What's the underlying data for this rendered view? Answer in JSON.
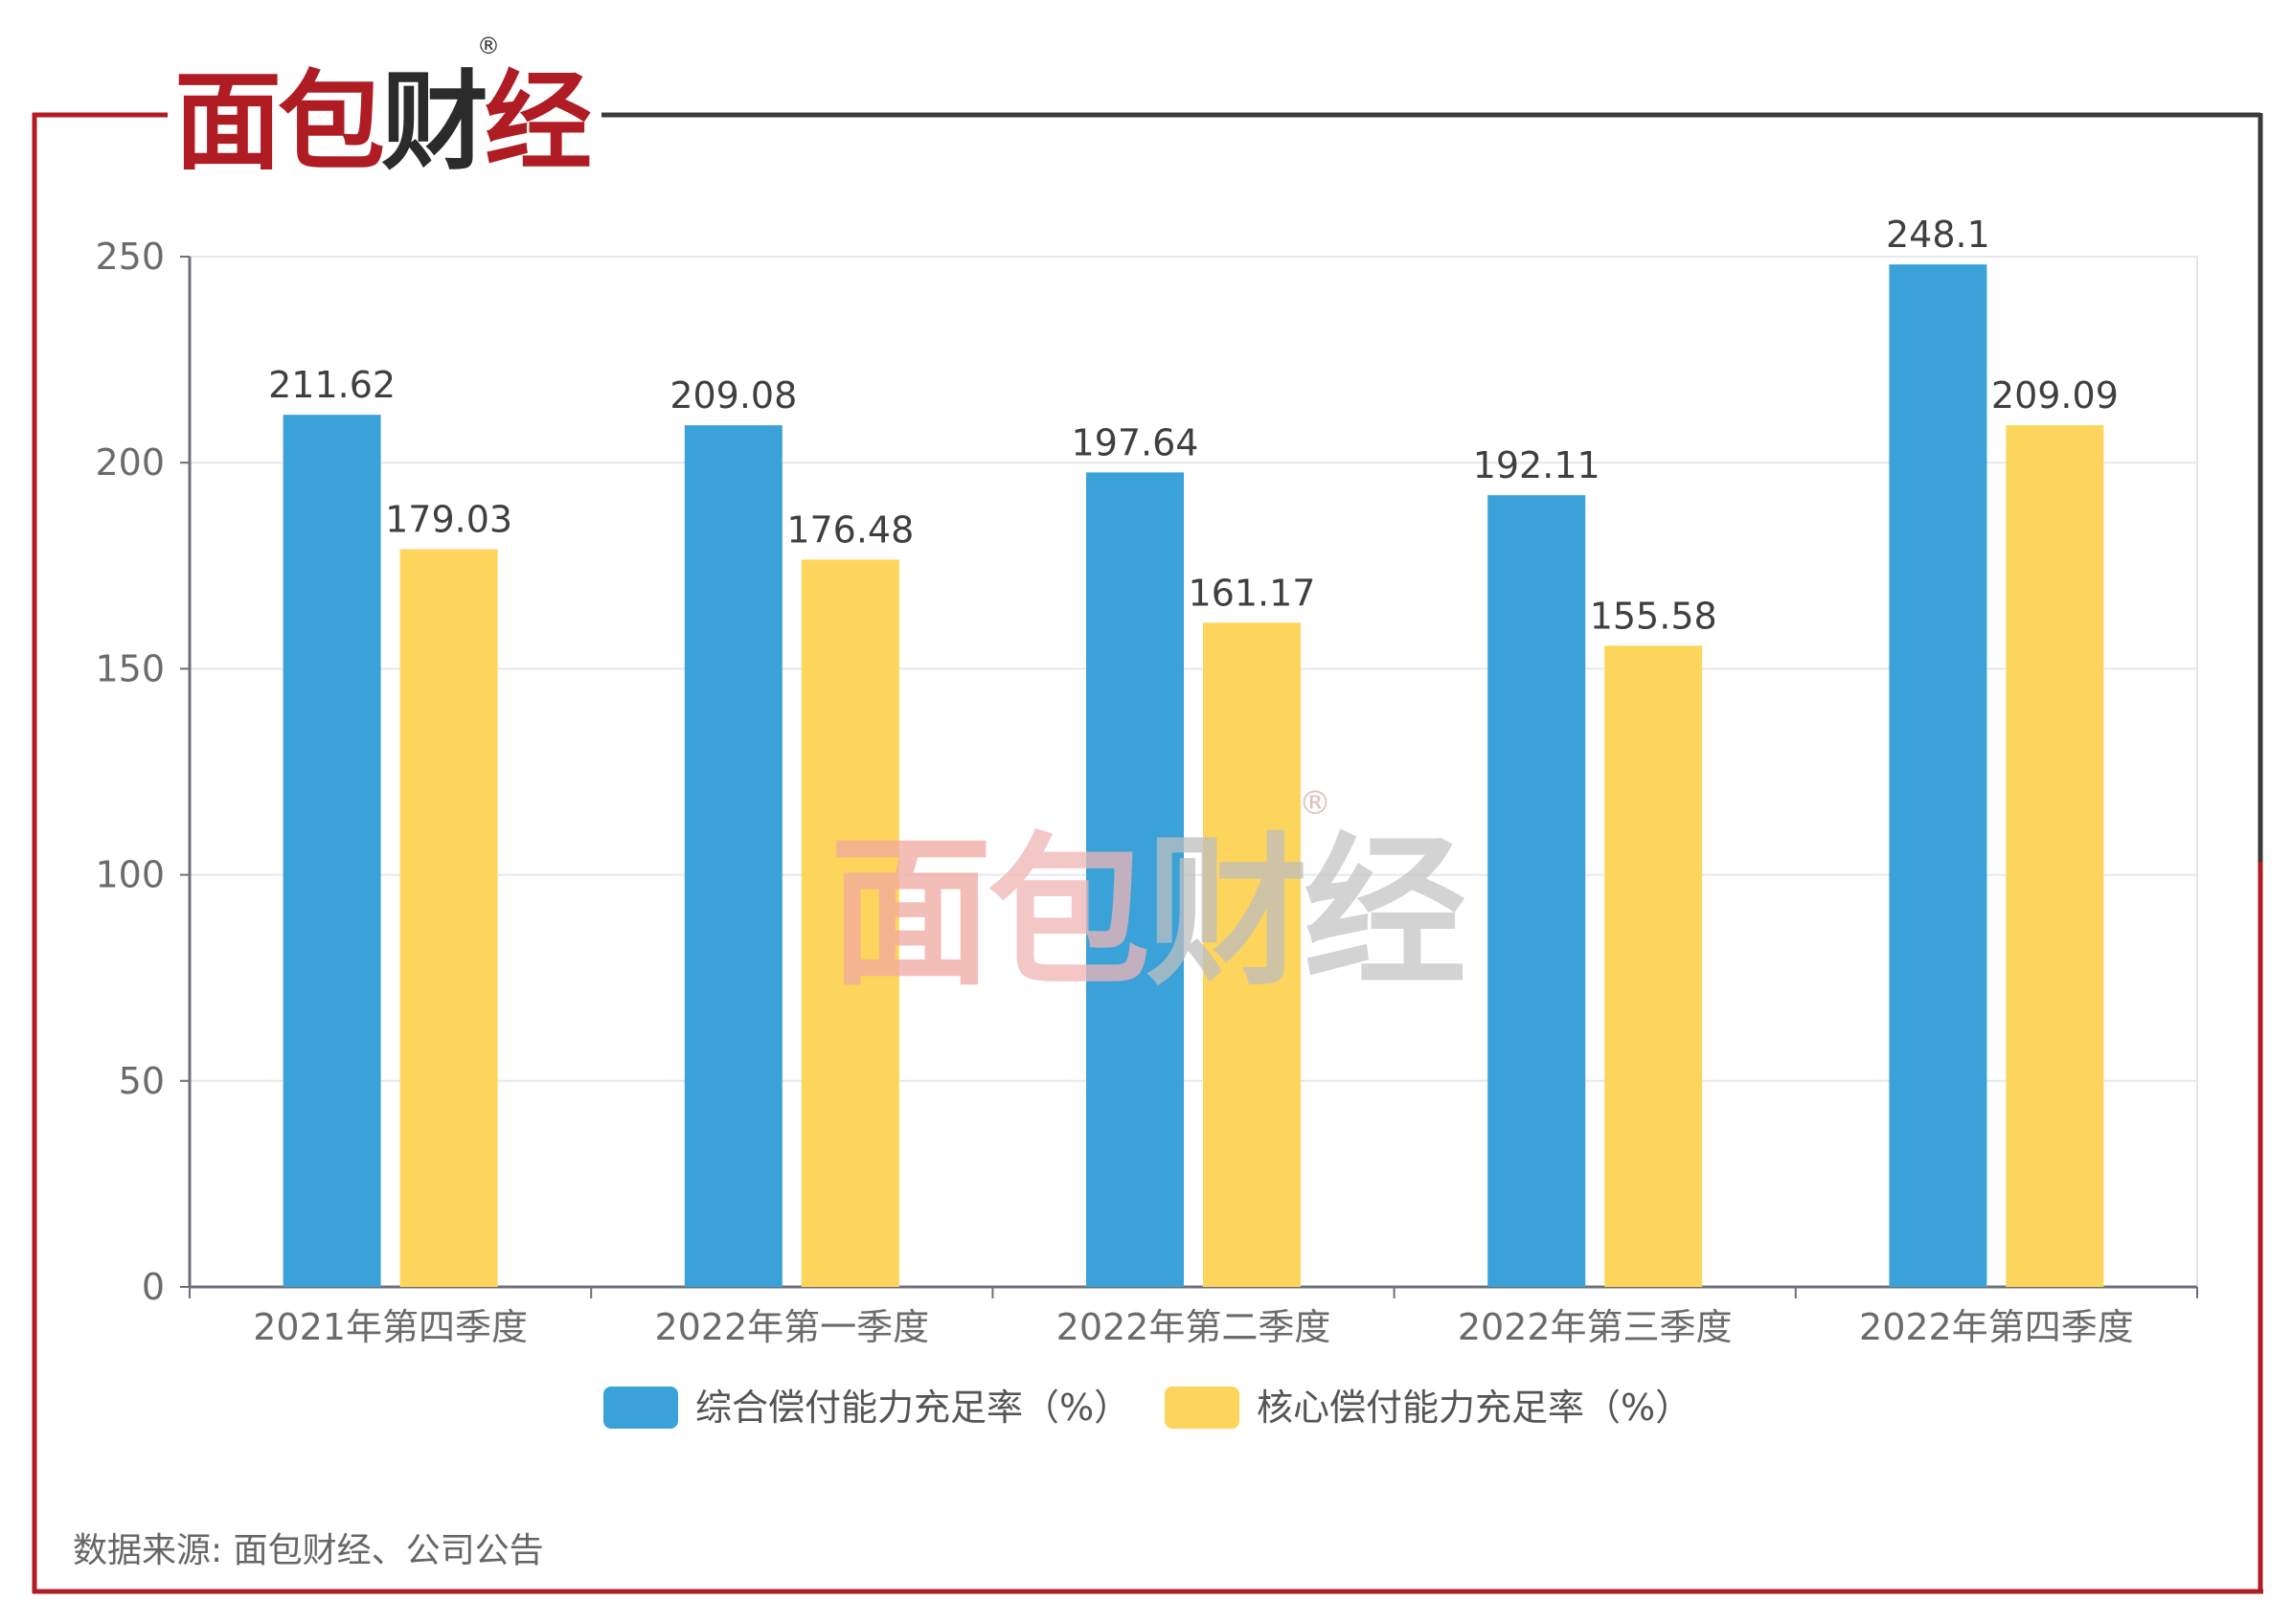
{
  "brand": {
    "logo_text": "面包财经",
    "registered_mark": "®",
    "accent_color": "#b01c24",
    "dark_color": "#2b2b2b"
  },
  "source": "数据来源: 面包财经、公司公告",
  "chart_data": {
    "type": "bar",
    "categories": [
      "2021年第四季度",
      "2022年第一季度",
      "2022年第二季度",
      "2022年第三季度",
      "2022年第四季度"
    ],
    "series": [
      {
        "name": "综合偿付能力充足率（%）",
        "color": "#3aa2d9",
        "values": [
          211.62,
          209.08,
          197.64,
          192.11,
          248.1
        ]
      },
      {
        "name": "核心偿付能力充足率（%）",
        "color": "#fdd55c",
        "values": [
          179.03,
          176.48,
          161.17,
          155.58,
          209.09
        ]
      }
    ],
    "data_labels": [
      [
        "211.62",
        "209.08",
        "197.64",
        "192.11",
        "248.1"
      ],
      [
        "179.03",
        "176.48",
        "161.17",
        "155.58",
        "209.09"
      ]
    ],
    "yticks": [
      "0",
      "50",
      "100",
      "150",
      "200",
      "250"
    ],
    "ylim": [
      0,
      250
    ],
    "grid": true,
    "legend_position": "bottom"
  }
}
